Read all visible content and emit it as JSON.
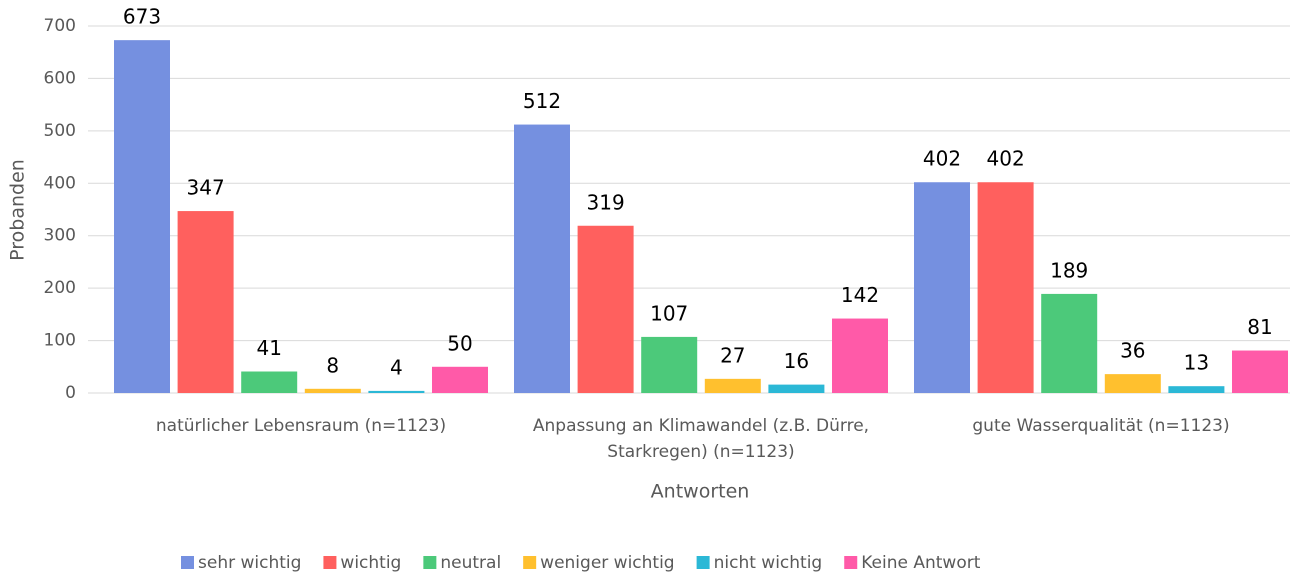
{
  "chart_data": {
    "type": "bar",
    "categories": [
      "natürlicher Lebensraum (n=1123)",
      "Anpassung an Klimawandel (z.B. Dürre, Starkregen) (n=1123)",
      "gute Wasserqualität (n=1123)"
    ],
    "series": [
      {
        "name": "sehr wichtig",
        "color": "#7590e0",
        "values": [
          673,
          512,
          402
        ]
      },
      {
        "name": "wichtig",
        "color": "#ff605e",
        "values": [
          347,
          319,
          402
        ]
      },
      {
        "name": "neutral",
        "color": "#4cc97a",
        "values": [
          41,
          107,
          189
        ]
      },
      {
        "name": "weniger wichtig",
        "color": "#ffc02e",
        "values": [
          8,
          27,
          36
        ]
      },
      {
        "name": "nicht wichtig",
        "color": "#2bb8d6",
        "values": [
          4,
          16,
          13
        ]
      },
      {
        "name": "Keine Antwort",
        "color": "#ff5aa8",
        "values": [
          50,
          142,
          81
        ]
      }
    ],
    "xlabel": "Antworten",
    "ylabel": "Probanden",
    "ylim": [
      0,
      700
    ],
    "yticks": [
      0,
      100,
      200,
      300,
      400,
      500,
      600,
      700
    ],
    "grid": true,
    "legend": "bottom"
  }
}
